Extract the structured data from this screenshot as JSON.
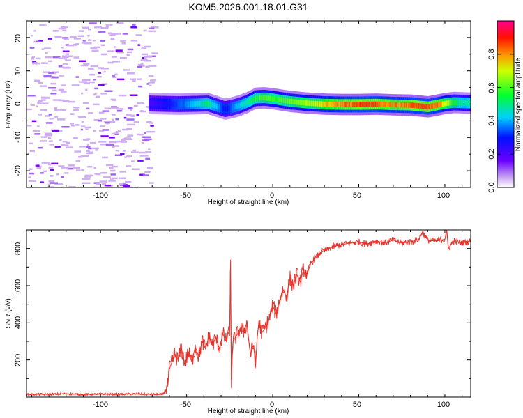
{
  "title": "KOM5.2026.001.18.01.G31",
  "chart_data": [
    {
      "type": "heatmap",
      "name": "spectrogram",
      "xlabel": "Height of straight line (km)",
      "ylabel": "Frequency (Hz)",
      "xlim": [
        -143,
        115
      ],
      "ylim": [
        -25,
        25
      ],
      "xticks": [
        -100,
        -50,
        0,
        50,
        100
      ],
      "xtick_labels": [
        "-100",
        "-50",
        "0",
        "50",
        "100"
      ],
      "yticks": [
        -20,
        -10,
        0,
        10,
        20
      ],
      "ytick_labels": [
        "-20",
        "-10",
        "0",
        "10",
        "20"
      ],
      "signal_track": {
        "x": [
          -72,
          -65,
          -55,
          -45,
          -38,
          -32,
          -28,
          -25,
          -20,
          -15,
          -10,
          -5,
          0,
          5,
          10,
          20,
          30,
          40,
          50,
          60,
          70,
          80,
          90,
          95,
          100,
          105,
          110,
          115
        ],
        "freq": [
          0.2,
          0.1,
          0.0,
          0.1,
          0.2,
          -0.8,
          -1.5,
          -1.2,
          -0.5,
          0.5,
          1.8,
          1.9,
          1.6,
          1.2,
          0.8,
          0.3,
          0.0,
          -0.1,
          -0.1,
          0.0,
          -0.2,
          -0.3,
          -0.8,
          -0.3,
          0.2,
          0.5,
          0.4,
          0.3
        ],
        "amplitude": [
          0.2,
          0.25,
          0.35,
          0.45,
          0.55,
          0.4,
          0.3,
          0.35,
          0.45,
          0.5,
          0.6,
          0.65,
          0.6,
          0.62,
          0.65,
          0.7,
          0.8,
          0.85,
          0.9,
          0.88,
          0.85,
          0.88,
          0.9,
          0.85,
          0.75,
          0.6,
          0.5,
          0.5
        ]
      },
      "noise_region": [
        -143,
        -70
      ],
      "colorbar": {
        "label": "Normalized spectral amplitude",
        "range": [
          0,
          1
        ],
        "ticks": [
          0.0,
          0.2,
          0.4,
          0.6,
          0.8
        ],
        "tick_labels": [
          "0.0",
          "0.2",
          "0.4",
          "0.6",
          "0.8"
        ]
      }
    },
    {
      "type": "line",
      "name": "snr",
      "xlabel": "Height of straight line (km)",
      "ylabel": "SNR (v/v)",
      "xlim": [
        -143,
        115
      ],
      "ylim": [
        0,
        900
      ],
      "xticks": [
        -100,
        -50,
        0,
        50,
        100
      ],
      "xtick_labels": [
        "-100",
        "-50",
        "0",
        "50",
        "100"
      ],
      "yticks": [
        200,
        400,
        600,
        800
      ],
      "ytick_labels": [
        "200",
        "400",
        "600",
        "800"
      ],
      "color": "#e8342c",
      "x": [
        -143,
        -130,
        -120,
        -110,
        -100,
        -90,
        -80,
        -70,
        -64,
        -62,
        -61,
        -60,
        -57,
        -55,
        -53,
        -51,
        -49,
        -47,
        -45,
        -43,
        -41,
        -39,
        -37,
        -35,
        -33,
        -31,
        -29,
        -27,
        -26,
        -25,
        -24.5,
        -24,
        -23.5,
        -23,
        -21,
        -19,
        -17,
        -15,
        -13,
        -11,
        -10,
        -9,
        -8,
        -7,
        -6,
        -4,
        -2,
        0,
        2,
        4,
        6,
        8,
        10,
        12,
        14,
        16,
        18,
        20,
        22,
        25,
        28,
        31,
        34,
        37,
        40,
        45,
        50,
        55,
        60,
        65,
        70,
        75,
        80,
        85,
        87,
        90,
        95,
        100,
        101,
        102,
        105,
        110,
        115
      ],
      "y": [
        15,
        15,
        18,
        14,
        16,
        15,
        17,
        15,
        14,
        40,
        60,
        150,
        230,
        200,
        260,
        180,
        240,
        190,
        270,
        220,
        300,
        260,
        330,
        280,
        320,
        260,
        340,
        300,
        350,
        330,
        740,
        50,
        250,
        300,
        330,
        370,
        350,
        400,
        230,
        280,
        160,
        320,
        410,
        360,
        350,
        380,
        420,
        490,
        450,
        520,
        580,
        540,
        640,
        600,
        660,
        620,
        690,
        660,
        720,
        750,
        780,
        790,
        805,
        815,
        820,
        830,
        835,
        825,
        840,
        830,
        845,
        830,
        835,
        850,
        890,
        845,
        840,
        850,
        900,
        800,
        840,
        830,
        840
      ]
    }
  ]
}
